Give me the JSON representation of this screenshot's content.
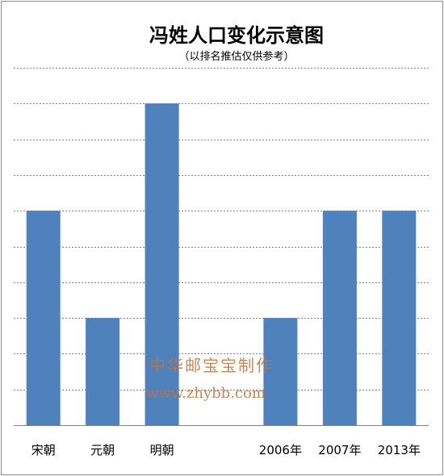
{
  "chart_data": {
    "type": "bar",
    "title": "冯姓人口变化示意图",
    "subtitle": "（以排名推估仅供参考）",
    "categories": [
      "宋朝",
      "元朝",
      "明朝",
      "",
      "2006年",
      "2007年",
      "2013年"
    ],
    "values": [
      6,
      3,
      9,
      null,
      3,
      6,
      6
    ],
    "ylim": [
      0,
      10
    ],
    "grid": true,
    "bar_color": "#4f81bd",
    "grid_color": "#808080"
  },
  "watermark": {
    "line1": "中华邮宝宝制作",
    "line2": "www.zhybb.com"
  }
}
